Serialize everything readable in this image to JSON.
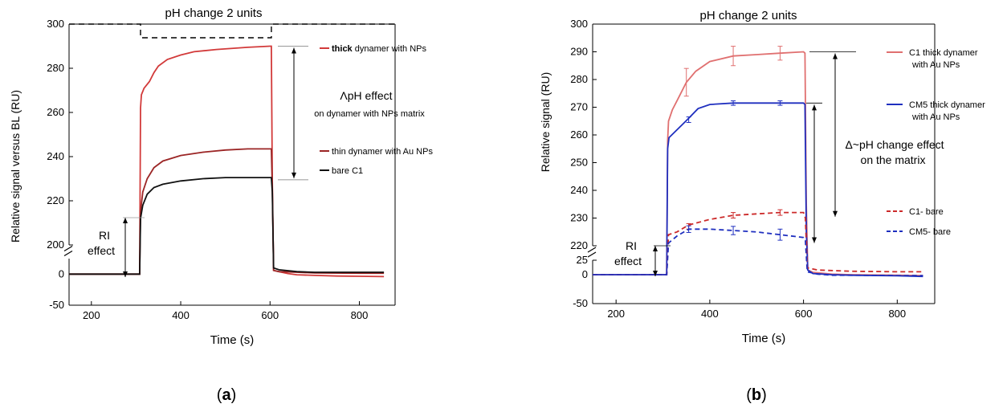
{
  "panels": [
    {
      "panel_label_open": "(",
      "panel_label_letter": "a",
      "panel_label_close": ")",
      "chart_data": {
        "type": "line",
        "title": "pH change 2 units",
        "xlabel": "Time (s)",
        "ylabel": "Relative signal versus BL (RU)",
        "xlim": [
          150,
          880
        ],
        "xticks": [
          200,
          400,
          600,
          800
        ],
        "lower_ylim": [
          -50,
          25
        ],
        "lower_yticks": [
          -50,
          0
        ],
        "upper_ylim": [
          200,
          300
        ],
        "upper_yticks": [
          200,
          220,
          240,
          260,
          280,
          300
        ],
        "axis_break": true,
        "series": [
          {
            "name_bold": "thick",
            "name_rest": " dynamer with NPs",
            "color": "#d23a3a",
            "line_style": "solid",
            "points": [
              [
                150,
                0
              ],
              [
                308,
                0
              ],
              [
                310,
                262
              ],
              [
                312,
                268
              ],
              [
                318,
                271
              ],
              [
                330,
                274
              ],
              [
                340,
                278
              ],
              [
                350,
                281
              ],
              [
                370,
                284
              ],
              [
                400,
                286
              ],
              [
                430,
                287.5
              ],
              [
                480,
                288.5
              ],
              [
                550,
                289.5
              ],
              [
                600,
                290
              ],
              [
                603,
                290
              ],
              [
                605,
                229
              ],
              [
                608,
                6
              ],
              [
                620,
                4
              ],
              [
                640,
                1
              ],
              [
                660,
                -1
              ],
              [
                700,
                -2
              ],
              [
                750,
                -3
              ],
              [
                800,
                -3.5
              ],
              [
                855,
                -4
              ]
            ]
          },
          {
            "name": "thin dynamer with Au NPs",
            "color": "#9b2525",
            "line_style": "solid",
            "points": [
              [
                150,
                0
              ],
              [
                308,
                0
              ],
              [
                310,
                215
              ],
              [
                315,
                224
              ],
              [
                325,
                230
              ],
              [
                340,
                235
              ],
              [
                360,
                238
              ],
              [
                400,
                240.5
              ],
              [
                450,
                242
              ],
              [
                500,
                243
              ],
              [
                550,
                243.5
              ],
              [
                603,
                243.5
              ],
              [
                605,
                226
              ],
              [
                608,
                6
              ],
              [
                620,
                4
              ],
              [
                660,
                3
              ],
              [
                700,
                2
              ],
              [
                800,
                1.5
              ],
              [
                855,
                1.5
              ]
            ]
          },
          {
            "name": "bare C1",
            "color": "#111111",
            "line_style": "solid",
            "points": [
              [
                150,
                0
              ],
              [
                308,
                0
              ],
              [
                310,
                212
              ],
              [
                315,
                218
              ],
              [
                325,
                223
              ],
              [
                340,
                226
              ],
              [
                360,
                227.5
              ],
              [
                400,
                229
              ],
              [
                450,
                230
              ],
              [
                500,
                230.5
              ],
              [
                550,
                230.5
              ],
              [
                603,
                230.5
              ],
              [
                605,
                224
              ],
              [
                608,
                10
              ],
              [
                620,
                7
              ],
              [
                660,
                4
              ],
              [
                700,
                3
              ],
              [
                800,
                3
              ],
              [
                855,
                3
              ]
            ]
          }
        ],
        "annotations": {
          "ri_effect_line1": "RI",
          "ri_effect_line2": "effect",
          "delta_line1": "ΛpH effect",
          "delta_line2": "on dynamer with NPs matrix"
        }
      }
    },
    {
      "panel_label_open": "(",
      "panel_label_letter": "b",
      "panel_label_close": ")",
      "chart_data": {
        "type": "line",
        "title": "pH change 2 units",
        "xlabel": "Time (s)",
        "ylabel": "Relative signal (RU)",
        "xlim": [
          150,
          880
        ],
        "xticks": [
          200,
          400,
          600,
          800
        ],
        "lower_ylim": [
          -50,
          25
        ],
        "lower_yticks": [
          -50,
          0,
          25
        ],
        "upper_ylim": [
          220,
          300
        ],
        "upper_yticks": [
          220,
          230,
          240,
          250,
          260,
          270,
          280,
          290,
          300
        ],
        "axis_break": true,
        "series": [
          {
            "name_line1": "C1 thick dynamer",
            "name_line2": "with Au NPs",
            "color": "#e07070",
            "line_style": "solid",
            "points": [
              [
                150,
                0
              ],
              [
                308,
                0
              ],
              [
                310,
                258
              ],
              [
                312,
                265
              ],
              [
                320,
                269
              ],
              [
                335,
                274
              ],
              [
                350,
                279
              ],
              [
                370,
                283
              ],
              [
                400,
                286.5
              ],
              [
                450,
                288.5
              ],
              [
                500,
                289
              ],
              [
                550,
                289.5
              ],
              [
                600,
                290
              ],
              [
                603,
                289.5
              ],
              [
                606,
                235
              ],
              [
                609,
                8
              ],
              [
                620,
                4
              ],
              [
                660,
                1
              ],
              [
                700,
                0
              ],
              [
                800,
                -1
              ],
              [
                855,
                -1.5
              ]
            ],
            "error_bars": [
              [
                350,
                279,
                5
              ],
              [
                450,
                288.5,
                3.5
              ],
              [
                550,
                289.5,
                2.5
              ]
            ]
          },
          {
            "name_line1": "CM5 thick dynamer",
            "name_line2": "with Au NPs",
            "color": "#1f2fbf",
            "line_style": "solid",
            "points": [
              [
                150,
                0
              ],
              [
                308,
                0
              ],
              [
                310,
                255
              ],
              [
                313,
                259
              ],
              [
                325,
                261
              ],
              [
                340,
                263.5
              ],
              [
                355,
                266
              ],
              [
                375,
                269.5
              ],
              [
                400,
                271
              ],
              [
                450,
                271.5
              ],
              [
                500,
                271.5
              ],
              [
                550,
                271.5
              ],
              [
                600,
                271.5
              ],
              [
                603,
                271
              ],
              [
                606,
                225
              ],
              [
                609,
                8
              ],
              [
                620,
                2
              ],
              [
                660,
                0
              ],
              [
                700,
                -1
              ],
              [
                800,
                -2
              ],
              [
                855,
                -3
              ]
            ],
            "error_bars": [
              [
                355,
                265.5,
                1
              ],
              [
                450,
                271.5,
                0.8
              ],
              [
                550,
                271.5,
                0.8
              ]
            ]
          },
          {
            "name": "C1- bare",
            "color": "#cc2a2a",
            "line_style": "dashed",
            "points": [
              [
                150,
                0
              ],
              [
                308,
                0
              ],
              [
                312,
                224
              ],
              [
                330,
                225
              ],
              [
                355,
                227.5
              ],
              [
                400,
                229.5
              ],
              [
                450,
                231
              ],
              [
                500,
                231.5
              ],
              [
                550,
                232
              ],
              [
                600,
                232
              ],
              [
                604,
                230
              ],
              [
                608,
                12
              ],
              [
                630,
                8
              ],
              [
                700,
                6
              ],
              [
                800,
                5
              ],
              [
                855,
                5
              ]
            ],
            "error_bars": [
              [
                355,
                227,
                1
              ],
              [
                450,
                231,
                1
              ],
              [
                550,
                232,
                1
              ]
            ]
          },
          {
            "name": "CM5- bare",
            "color": "#1f2fbf",
            "line_style": "dashed",
            "points": [
              [
                150,
                0
              ],
              [
                308,
                0
              ],
              [
                312,
                221
              ],
              [
                330,
                223.5
              ],
              [
                355,
                226
              ],
              [
                400,
                226
              ],
              [
                450,
                225.5
              ],
              [
                500,
                225
              ],
              [
                550,
                224
              ],
              [
                600,
                223
              ],
              [
                604,
                222
              ],
              [
                608,
                5
              ],
              [
                630,
                1
              ],
              [
                660,
                -1
              ],
              [
                700,
                -1
              ],
              [
                800,
                -1.5
              ],
              [
                855,
                -1.5
              ]
            ],
            "error_bars": [
              [
                355,
                226,
                1.2
              ],
              [
                450,
                225.5,
                1.5
              ],
              [
                550,
                224,
                2
              ]
            ]
          }
        ],
        "annotations": {
          "ri_effect_line1": "RI",
          "ri_effect_line2": "effect",
          "delta_line1": "Δ~pH change effect",
          "delta_line2": "on the matrix"
        }
      }
    }
  ]
}
